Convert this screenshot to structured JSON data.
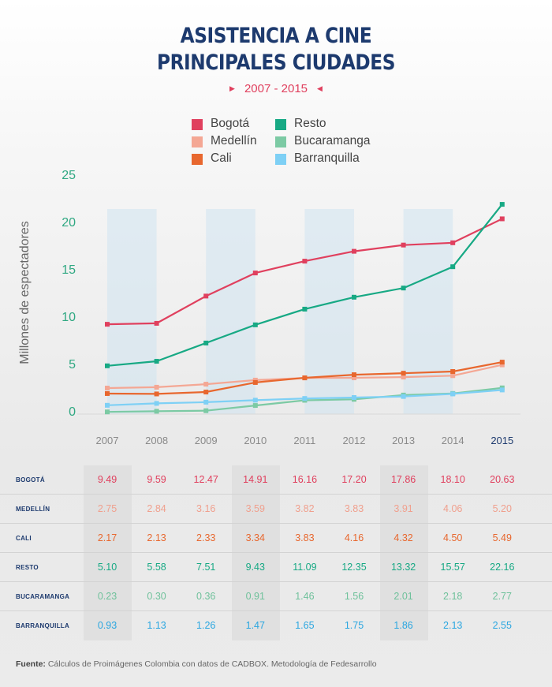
{
  "title_line1": "ASISTENCIA A CINE",
  "title_line2": "PRINCIPALES CIUDADES",
  "subtitle": "2007 - 2015",
  "chart_data": {
    "type": "line",
    "title": "ASISTENCIA A CINE PRINCIPALES CIUDADES",
    "subtitle": "2007 - 2015",
    "ylabel": "Millones de espectadores",
    "xlabel": "",
    "x": [
      "2007",
      "2008",
      "2009",
      "2010",
      "2011",
      "2012",
      "2013",
      "2014",
      "2015"
    ],
    "ylim": [
      0,
      25
    ],
    "yticks": [
      "0",
      "5",
      "10",
      "15",
      "20",
      "25"
    ],
    "legend_position": "top",
    "series": [
      {
        "name": "Bogotá",
        "color": "#e0405e",
        "values": [
          9.49,
          9.59,
          12.47,
          14.91,
          16.16,
          17.2,
          17.86,
          18.1,
          20.63
        ]
      },
      {
        "name": "Medellín",
        "color": "#f4a794",
        "values": [
          2.75,
          2.84,
          3.16,
          3.59,
          3.82,
          3.83,
          3.91,
          4.06,
          5.2
        ]
      },
      {
        "name": "Cali",
        "color": "#e8672e",
        "values": [
          2.17,
          2.13,
          2.33,
          3.34,
          3.83,
          4.16,
          4.32,
          4.5,
          5.49
        ]
      },
      {
        "name": "Resto",
        "color": "#17a984",
        "values": [
          5.1,
          5.58,
          7.51,
          9.43,
          11.09,
          12.35,
          13.32,
          15.57,
          22.16
        ]
      },
      {
        "name": "Bucaramanga",
        "color": "#7ccaa4",
        "values": [
          0.23,
          0.3,
          0.36,
          0.91,
          1.46,
          1.56,
          2.01,
          2.18,
          2.77
        ]
      },
      {
        "name": "Barranquilla",
        "color": "#7ed0f5",
        "values": [
          0.93,
          1.13,
          1.26,
          1.47,
          1.65,
          1.75,
          1.86,
          2.13,
          2.55
        ]
      }
    ]
  },
  "table": {
    "rows": [
      {
        "label": "BOGOTÁ",
        "color": "#e0405e",
        "values": [
          "9.49",
          "9.59",
          "12.47",
          "14.91",
          "16.16",
          "17.20",
          "17.86",
          "18.10",
          "20.63"
        ]
      },
      {
        "label": "MEDELLÍN",
        "color": "#f0a08e",
        "values": [
          "2.75",
          "2.84",
          "3.16",
          "3.59",
          "3.82",
          "3.83",
          "3.91",
          "4.06",
          "5.20"
        ]
      },
      {
        "label": "CALI",
        "color": "#e8672e",
        "values": [
          "2.17",
          "2.13",
          "2.33",
          "3.34",
          "3.83",
          "4.16",
          "4.32",
          "4.50",
          "5.49"
        ]
      },
      {
        "label": "RESTO",
        "color": "#17a984",
        "values": [
          "5.10",
          "5.58",
          "7.51",
          "9.43",
          "11.09",
          "12.35",
          "13.32",
          "15.57",
          "22.16"
        ]
      },
      {
        "label": "BUCARAMANGA",
        "color": "#6fc19b",
        "values": [
          "0.23",
          "0.30",
          "0.36",
          "0.91",
          "1.46",
          "1.56",
          "2.01",
          "2.18",
          "2.77"
        ]
      },
      {
        "label": "BARRANQUILLA",
        "color": "#2aa6e0",
        "values": [
          "0.93",
          "1.13",
          "1.26",
          "1.47",
          "1.65",
          "1.75",
          "1.86",
          "2.13",
          "2.55"
        ]
      }
    ]
  },
  "footer": {
    "label": "Fuente:",
    "text": " Cálculos de Proimágenes Colombia con datos de CADBOX. Metodología de Fedesarrollo"
  }
}
